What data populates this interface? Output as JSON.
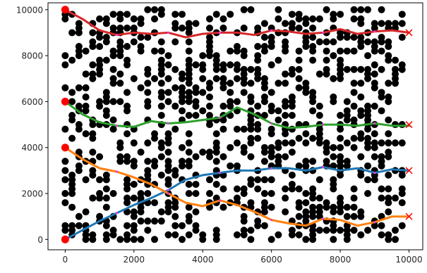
{
  "chart_data": {
    "type": "scatter",
    "xlim": [
      -500,
      10400
    ],
    "ylim": [
      -450,
      10300
    ],
    "xticks": [
      0,
      2000,
      4000,
      6000,
      8000,
      10000
    ],
    "xtick_labels": [
      "0",
      "2000",
      "4000",
      "6000",
      "8000",
      "10000"
    ],
    "yticks": [
      0,
      2000,
      4000,
      6000,
      8000,
      10000
    ],
    "ytick_labels": [
      "0",
      "2000",
      "4000",
      "6000",
      "8000",
      "10000"
    ],
    "grid": false,
    "scatter_color": "#000000",
    "scatter_note": "black obstacle points on a 200-unit grid (approximate random sample)",
    "scatter_seed": 17,
    "scatter_density": 0.34,
    "paths": [
      {
        "color": "#1f77b4",
        "x": [
          0,
          500,
          1000,
          1500,
          2000,
          2500,
          3000,
          3500,
          4000,
          4500,
          5000,
          5500,
          6000,
          6500,
          7000,
          7500,
          8000,
          8500,
          9000,
          9500,
          10000
        ],
        "y": [
          0,
          400,
          800,
          1150,
          1500,
          1800,
          2150,
          2600,
          2800,
          2900,
          3000,
          3000,
          3100,
          3100,
          3000,
          3150,
          3000,
          3100,
          2900,
          3050,
          3000
        ]
      },
      {
        "color": "#ff7f0e",
        "x": [
          0,
          500,
          1000,
          1500,
          2000,
          2500,
          3000,
          3500,
          4000,
          4500,
          5000,
          5500,
          6000,
          6500,
          7000,
          7500,
          8000,
          8500,
          9000,
          9500,
          10000
        ],
        "y": [
          4000,
          3500,
          3100,
          2950,
          2700,
          2400,
          2000,
          1600,
          1450,
          1700,
          1500,
          1200,
          850,
          700,
          600,
          900,
          850,
          600,
          750,
          1000,
          1000
        ]
      },
      {
        "color": "#2ca02c",
        "x": [
          0,
          500,
          1000,
          1500,
          2000,
          2500,
          3000,
          3500,
          4000,
          4500,
          5000,
          5500,
          6000,
          6500,
          7000,
          7500,
          8000,
          8500,
          9000,
          9500,
          10000
        ],
        "y": [
          6000,
          5450,
          5100,
          4950,
          4900,
          5150,
          5050,
          5100,
          5200,
          5300,
          5750,
          5450,
          5050,
          4850,
          4900,
          5000,
          5000,
          4950,
          5050,
          4950,
          4950
        ]
      },
      {
        "color": "#d62728",
        "x": [
          0,
          500,
          1000,
          1500,
          2000,
          2500,
          3000,
          3500,
          4000,
          4500,
          5000,
          5500,
          6000,
          6500,
          7000,
          7500,
          8000,
          8500,
          9000,
          9500,
          10000
        ],
        "y": [
          10000,
          9600,
          9100,
          8900,
          9000,
          8950,
          9000,
          8800,
          8950,
          9000,
          9000,
          8900,
          9100,
          9050,
          8950,
          9000,
          9150,
          8950,
          9050,
          9100,
          9000
        ]
      }
    ],
    "waypoint_color": "#e040e0",
    "starts": {
      "color": "#ff0000",
      "x": [
        0,
        0,
        0,
        0
      ],
      "y": [
        0,
        4000,
        6000,
        10000
      ]
    },
    "goals": {
      "color": "#ff0000",
      "marker": "x",
      "x": [
        10000,
        10000,
        10000,
        10000
      ],
      "y": [
        3000,
        1000,
        5000,
        9000
      ]
    }
  }
}
